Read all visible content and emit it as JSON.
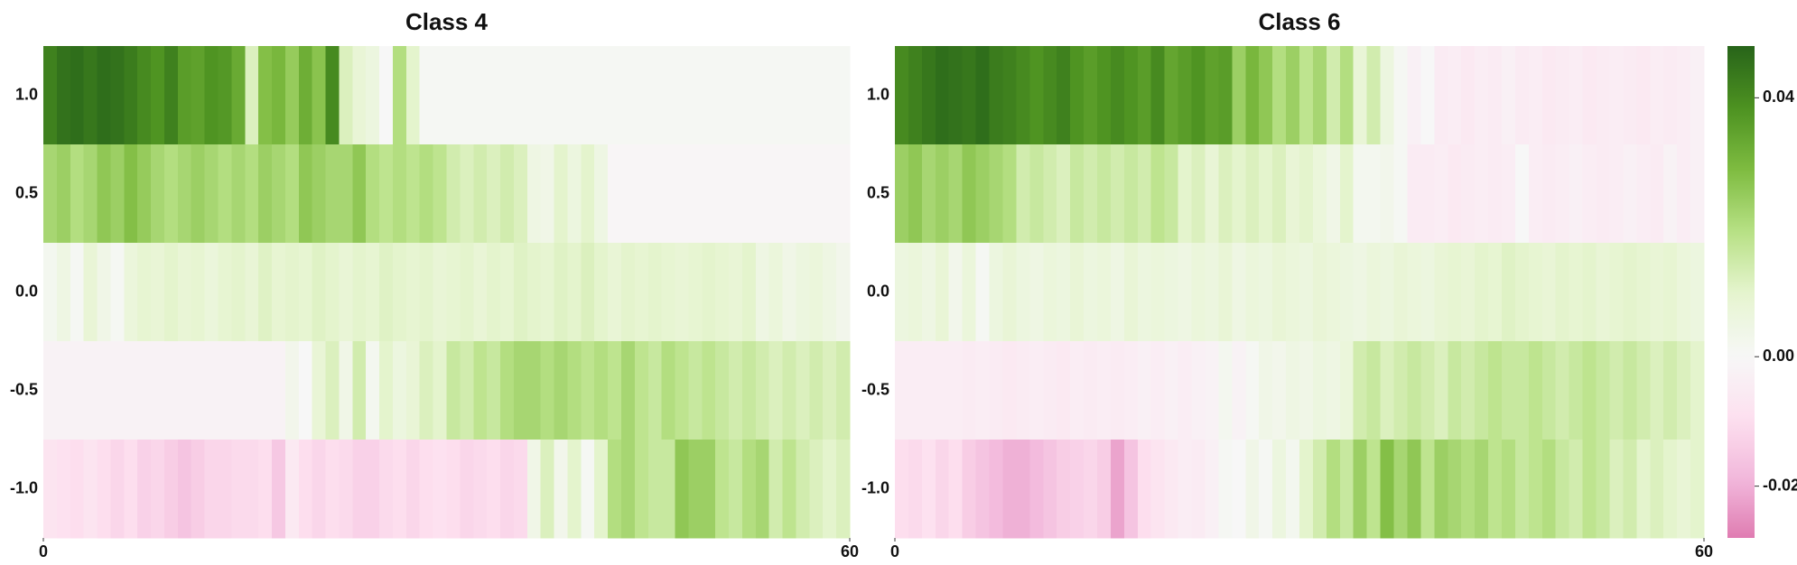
{
  "chart_data": [
    {
      "type": "heatmap",
      "title": "Class 4",
      "rows": [
        "1.0",
        "0.5",
        "0.0",
        "-0.5",
        "-1.0"
      ],
      "xlim": [
        0,
        60
      ],
      "xticks": [
        0,
        60
      ],
      "clim": [
        -0.028,
        0.048
      ],
      "colormap": [
        "#8e0152",
        "#c51b7d",
        "#de77ae",
        "#f1b6da",
        "#fde0ef",
        "#f7f7f7",
        "#e6f5d0",
        "#b8e186",
        "#7fbc41",
        "#4d9221",
        "#276419"
      ],
      "values": [
        [
          0.042,
          0.045,
          0.046,
          0.044,
          0.046,
          0.045,
          0.043,
          0.04,
          0.038,
          0.042,
          0.036,
          0.035,
          0.038,
          0.037,
          0.033,
          0.012,
          0.028,
          0.03,
          0.025,
          0.032,
          0.027,
          0.04,
          0.012,
          0.008,
          0.006,
          0.0,
          0.02,
          0.01,
          0.001,
          0.001,
          0.001,
          0.001,
          0.001,
          0.001,
          0.001,
          0.001,
          0.001,
          0.001,
          0.001,
          0.001,
          0.001,
          0.001,
          0.001,
          0.001,
          0.001,
          0.001,
          0.001,
          0.001,
          0.001,
          0.001,
          0.001,
          0.001,
          0.001,
          0.001,
          0.001,
          0.001,
          0.001,
          0.001,
          0.001,
          0.001
        ],
        [
          0.022,
          0.024,
          0.02,
          0.022,
          0.026,
          0.024,
          0.028,
          0.025,
          0.022,
          0.02,
          0.022,
          0.024,
          0.022,
          0.02,
          0.022,
          0.02,
          0.024,
          0.022,
          0.02,
          0.026,
          0.024,
          0.022,
          0.022,
          0.026,
          0.02,
          0.018,
          0.02,
          0.018,
          0.02,
          0.018,
          0.014,
          0.012,
          0.014,
          0.012,
          0.014,
          0.012,
          0.005,
          0.004,
          0.01,
          0.006,
          0.01,
          0.005,
          -0.001,
          -0.001,
          -0.001,
          -0.001,
          -0.001,
          -0.001,
          -0.001,
          -0.001,
          -0.001,
          -0.001,
          -0.001,
          -0.001,
          -0.001,
          -0.001,
          -0.001,
          -0.001,
          -0.001,
          -0.001
        ],
        [
          0.002,
          0.005,
          0.001,
          0.008,
          0.004,
          0.001,
          0.007,
          0.009,
          0.008,
          0.01,
          0.008,
          0.009,
          0.007,
          0.009,
          0.01,
          0.008,
          0.011,
          0.009,
          0.01,
          0.009,
          0.011,
          0.01,
          0.008,
          0.01,
          0.009,
          0.011,
          0.01,
          0.009,
          0.01,
          0.008,
          0.009,
          0.01,
          0.008,
          0.01,
          0.009,
          0.011,
          0.01,
          0.009,
          0.011,
          0.01,
          0.012,
          0.01,
          0.008,
          0.01,
          0.009,
          0.01,
          0.009,
          0.008,
          0.009,
          0.01,
          0.009,
          0.008,
          0.01,
          0.005,
          0.007,
          0.004,
          0.006,
          0.007,
          0.005,
          0.003
        ],
        [
          -0.002,
          -0.002,
          -0.002,
          -0.002,
          -0.002,
          -0.002,
          -0.002,
          -0.002,
          -0.002,
          -0.002,
          -0.002,
          -0.002,
          -0.002,
          -0.002,
          -0.002,
          -0.002,
          -0.002,
          -0.002,
          0.003,
          0.0,
          0.008,
          0.012,
          0.004,
          0.014,
          0.002,
          0.01,
          0.006,
          0.008,
          0.012,
          0.01,
          0.016,
          0.014,
          0.018,
          0.016,
          0.02,
          0.022,
          0.022,
          0.02,
          0.022,
          0.02,
          0.018,
          0.02,
          0.018,
          0.022,
          0.018,
          0.016,
          0.02,
          0.018,
          0.016,
          0.018,
          0.016,
          0.014,
          0.016,
          0.014,
          0.012,
          0.014,
          0.012,
          0.014,
          0.012,
          0.014
        ],
        [
          -0.008,
          -0.009,
          -0.01,
          -0.008,
          -0.01,
          -0.012,
          -0.01,
          -0.013,
          -0.012,
          -0.014,
          -0.016,
          -0.014,
          -0.012,
          -0.012,
          -0.011,
          -0.011,
          -0.01,
          -0.015,
          -0.006,
          -0.01,
          -0.012,
          -0.01,
          -0.011,
          -0.013,
          -0.013,
          -0.011,
          -0.01,
          -0.012,
          -0.01,
          -0.009,
          -0.01,
          -0.012,
          -0.011,
          -0.01,
          -0.012,
          -0.011,
          0.004,
          0.012,
          0.003,
          0.01,
          0.001,
          0.01,
          0.02,
          0.022,
          0.018,
          0.016,
          0.016,
          0.026,
          0.024,
          0.024,
          0.018,
          0.016,
          0.02,
          0.022,
          0.014,
          0.018,
          0.014,
          0.012,
          0.01,
          0.012
        ]
      ]
    },
    {
      "type": "heatmap",
      "title": "Class 6",
      "rows": [
        "1.0",
        "0.5",
        "0.0",
        "-0.5",
        "-1.0"
      ],
      "xlim": [
        0,
        60
      ],
      "xticks": [
        0,
        60
      ],
      "clim": [
        -0.028,
        0.048
      ],
      "colormap": [
        "#8e0152",
        "#c51b7d",
        "#de77ae",
        "#f1b6da",
        "#fde0ef",
        "#f7f7f7",
        "#e6f5d0",
        "#b8e186",
        "#7fbc41",
        "#4d9221",
        "#276419"
      ],
      "colorbar": true,
      "cticks": [
        0.04,
        {
          "value": 0,
          "label": "0.00"
        },
        -0.02
      ],
      "values": [
        [
          0.04,
          0.042,
          0.044,
          0.046,
          0.045,
          0.044,
          0.046,
          0.043,
          0.042,
          0.04,
          0.038,
          0.04,
          0.042,
          0.038,
          0.036,
          0.038,
          0.04,
          0.038,
          0.036,
          0.04,
          0.034,
          0.036,
          0.038,
          0.035,
          0.036,
          0.024,
          0.03,
          0.026,
          0.02,
          0.024,
          0.018,
          0.022,
          0.014,
          0.02,
          0.008,
          0.014,
          0.006,
          0.001,
          -0.003,
          0.0,
          -0.005,
          -0.004,
          -0.006,
          -0.004,
          -0.005,
          -0.003,
          -0.005,
          -0.004,
          -0.006,
          -0.005,
          -0.004,
          -0.006,
          -0.005,
          -0.004,
          -0.005,
          -0.006,
          -0.004,
          -0.005,
          -0.004,
          -0.003
        ],
        [
          0.024,
          0.026,
          0.022,
          0.024,
          0.022,
          0.026,
          0.024,
          0.022,
          0.02,
          0.014,
          0.016,
          0.014,
          0.012,
          0.016,
          0.014,
          0.016,
          0.014,
          0.016,
          0.014,
          0.018,
          0.016,
          0.01,
          0.012,
          0.008,
          0.012,
          0.01,
          0.012,
          0.01,
          0.012,
          0.008,
          0.01,
          0.007,
          0.004,
          0.01,
          0.002,
          0.002,
          0.003,
          0.001,
          -0.005,
          -0.005,
          -0.004,
          -0.006,
          -0.005,
          -0.004,
          -0.005,
          -0.004,
          0.0,
          -0.004,
          -0.005,
          -0.004,
          -0.003,
          -0.004,
          -0.005,
          -0.004,
          -0.003,
          -0.004,
          -0.005,
          -0.002,
          -0.004,
          -0.003
        ],
        [
          0.006,
          0.007,
          0.005,
          0.008,
          0.003,
          0.007,
          0.001,
          0.006,
          0.008,
          0.006,
          0.005,
          0.007,
          0.006,
          0.008,
          0.006,
          0.007,
          0.005,
          0.008,
          0.006,
          0.007,
          0.006,
          0.005,
          0.007,
          0.006,
          0.008,
          0.005,
          0.007,
          0.006,
          0.008,
          0.007,
          0.006,
          0.008,
          0.007,
          0.006,
          0.005,
          0.007,
          0.006,
          0.008,
          0.007,
          0.006,
          0.008,
          0.009,
          0.008,
          0.01,
          0.009,
          0.011,
          0.01,
          0.009,
          0.008,
          0.01,
          0.009,
          0.01,
          0.008,
          0.009,
          0.01,
          0.009,
          0.008,
          0.009,
          0.007,
          0.006
        ],
        [
          -0.004,
          -0.004,
          -0.004,
          -0.004,
          -0.004,
          -0.005,
          -0.004,
          -0.005,
          -0.006,
          -0.005,
          -0.004,
          -0.005,
          -0.006,
          -0.004,
          -0.005,
          -0.004,
          -0.005,
          -0.004,
          -0.003,
          -0.004,
          -0.003,
          -0.004,
          -0.003,
          -0.002,
          0.002,
          -0.002,
          0.001,
          0.004,
          0.003,
          0.005,
          0.004,
          0.006,
          0.005,
          0.007,
          0.014,
          0.016,
          0.012,
          0.014,
          0.016,
          0.014,
          0.012,
          0.016,
          0.014,
          0.016,
          0.018,
          0.016,
          0.016,
          0.018,
          0.016,
          0.014,
          0.016,
          0.018,
          0.016,
          0.014,
          0.016,
          0.014,
          0.012,
          0.014,
          0.012,
          0.01
        ],
        [
          -0.01,
          -0.011,
          -0.009,
          -0.012,
          -0.01,
          -0.014,
          -0.016,
          -0.018,
          -0.02,
          -0.02,
          -0.018,
          -0.016,
          -0.014,
          -0.013,
          -0.012,
          -0.014,
          -0.022,
          -0.016,
          -0.01,
          -0.008,
          -0.006,
          -0.004,
          -0.005,
          -0.003,
          0.001,
          0.0,
          0.004,
          0.001,
          0.006,
          0.002,
          0.01,
          0.014,
          0.02,
          0.016,
          0.024,
          0.018,
          0.028,
          0.022,
          0.026,
          0.018,
          0.024,
          0.022,
          0.02,
          0.022,
          0.018,
          0.02,
          0.016,
          0.018,
          0.02,
          0.016,
          0.014,
          0.018,
          0.016,
          0.012,
          0.014,
          0.01,
          0.012,
          0.01,
          0.008,
          0.01
        ]
      ]
    }
  ]
}
